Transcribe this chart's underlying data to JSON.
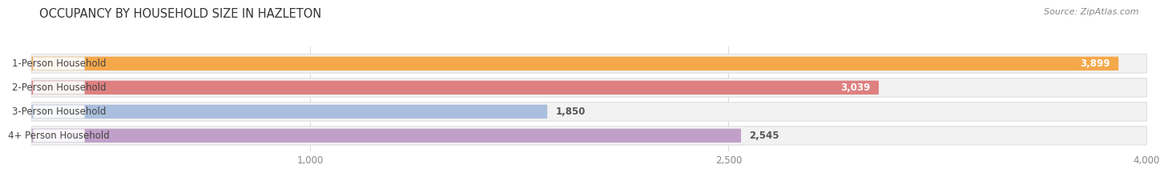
{
  "title": "OCCUPANCY BY HOUSEHOLD SIZE IN HAZLETON",
  "source": "Source: ZipAtlas.com",
  "categories": [
    "1-Person Household",
    "2-Person Household",
    "3-Person Household",
    "4+ Person Household"
  ],
  "values": [
    3899,
    3039,
    1850,
    2545
  ],
  "bar_colors": [
    "#F5A84A",
    "#DE8080",
    "#AABEDD",
    "#C0A0C8"
  ],
  "bar_track_color": "#F2F2F2",
  "bar_track_edge": "#E0E0E0",
  "background_color": "#FFFFFF",
  "xlim": [
    0,
    4000
  ],
  "xticks": [
    1000,
    2500,
    4000
  ],
  "xtick_labels": [
    "1,000",
    "2,500",
    "4,000"
  ],
  "grid_color": "#D8D8D8",
  "label_color": "#444444",
  "title_fontsize": 10.5,
  "source_fontsize": 8,
  "bar_label_fontsize": 8.5,
  "value_fontsize": 8.5,
  "tick_fontsize": 8.5
}
